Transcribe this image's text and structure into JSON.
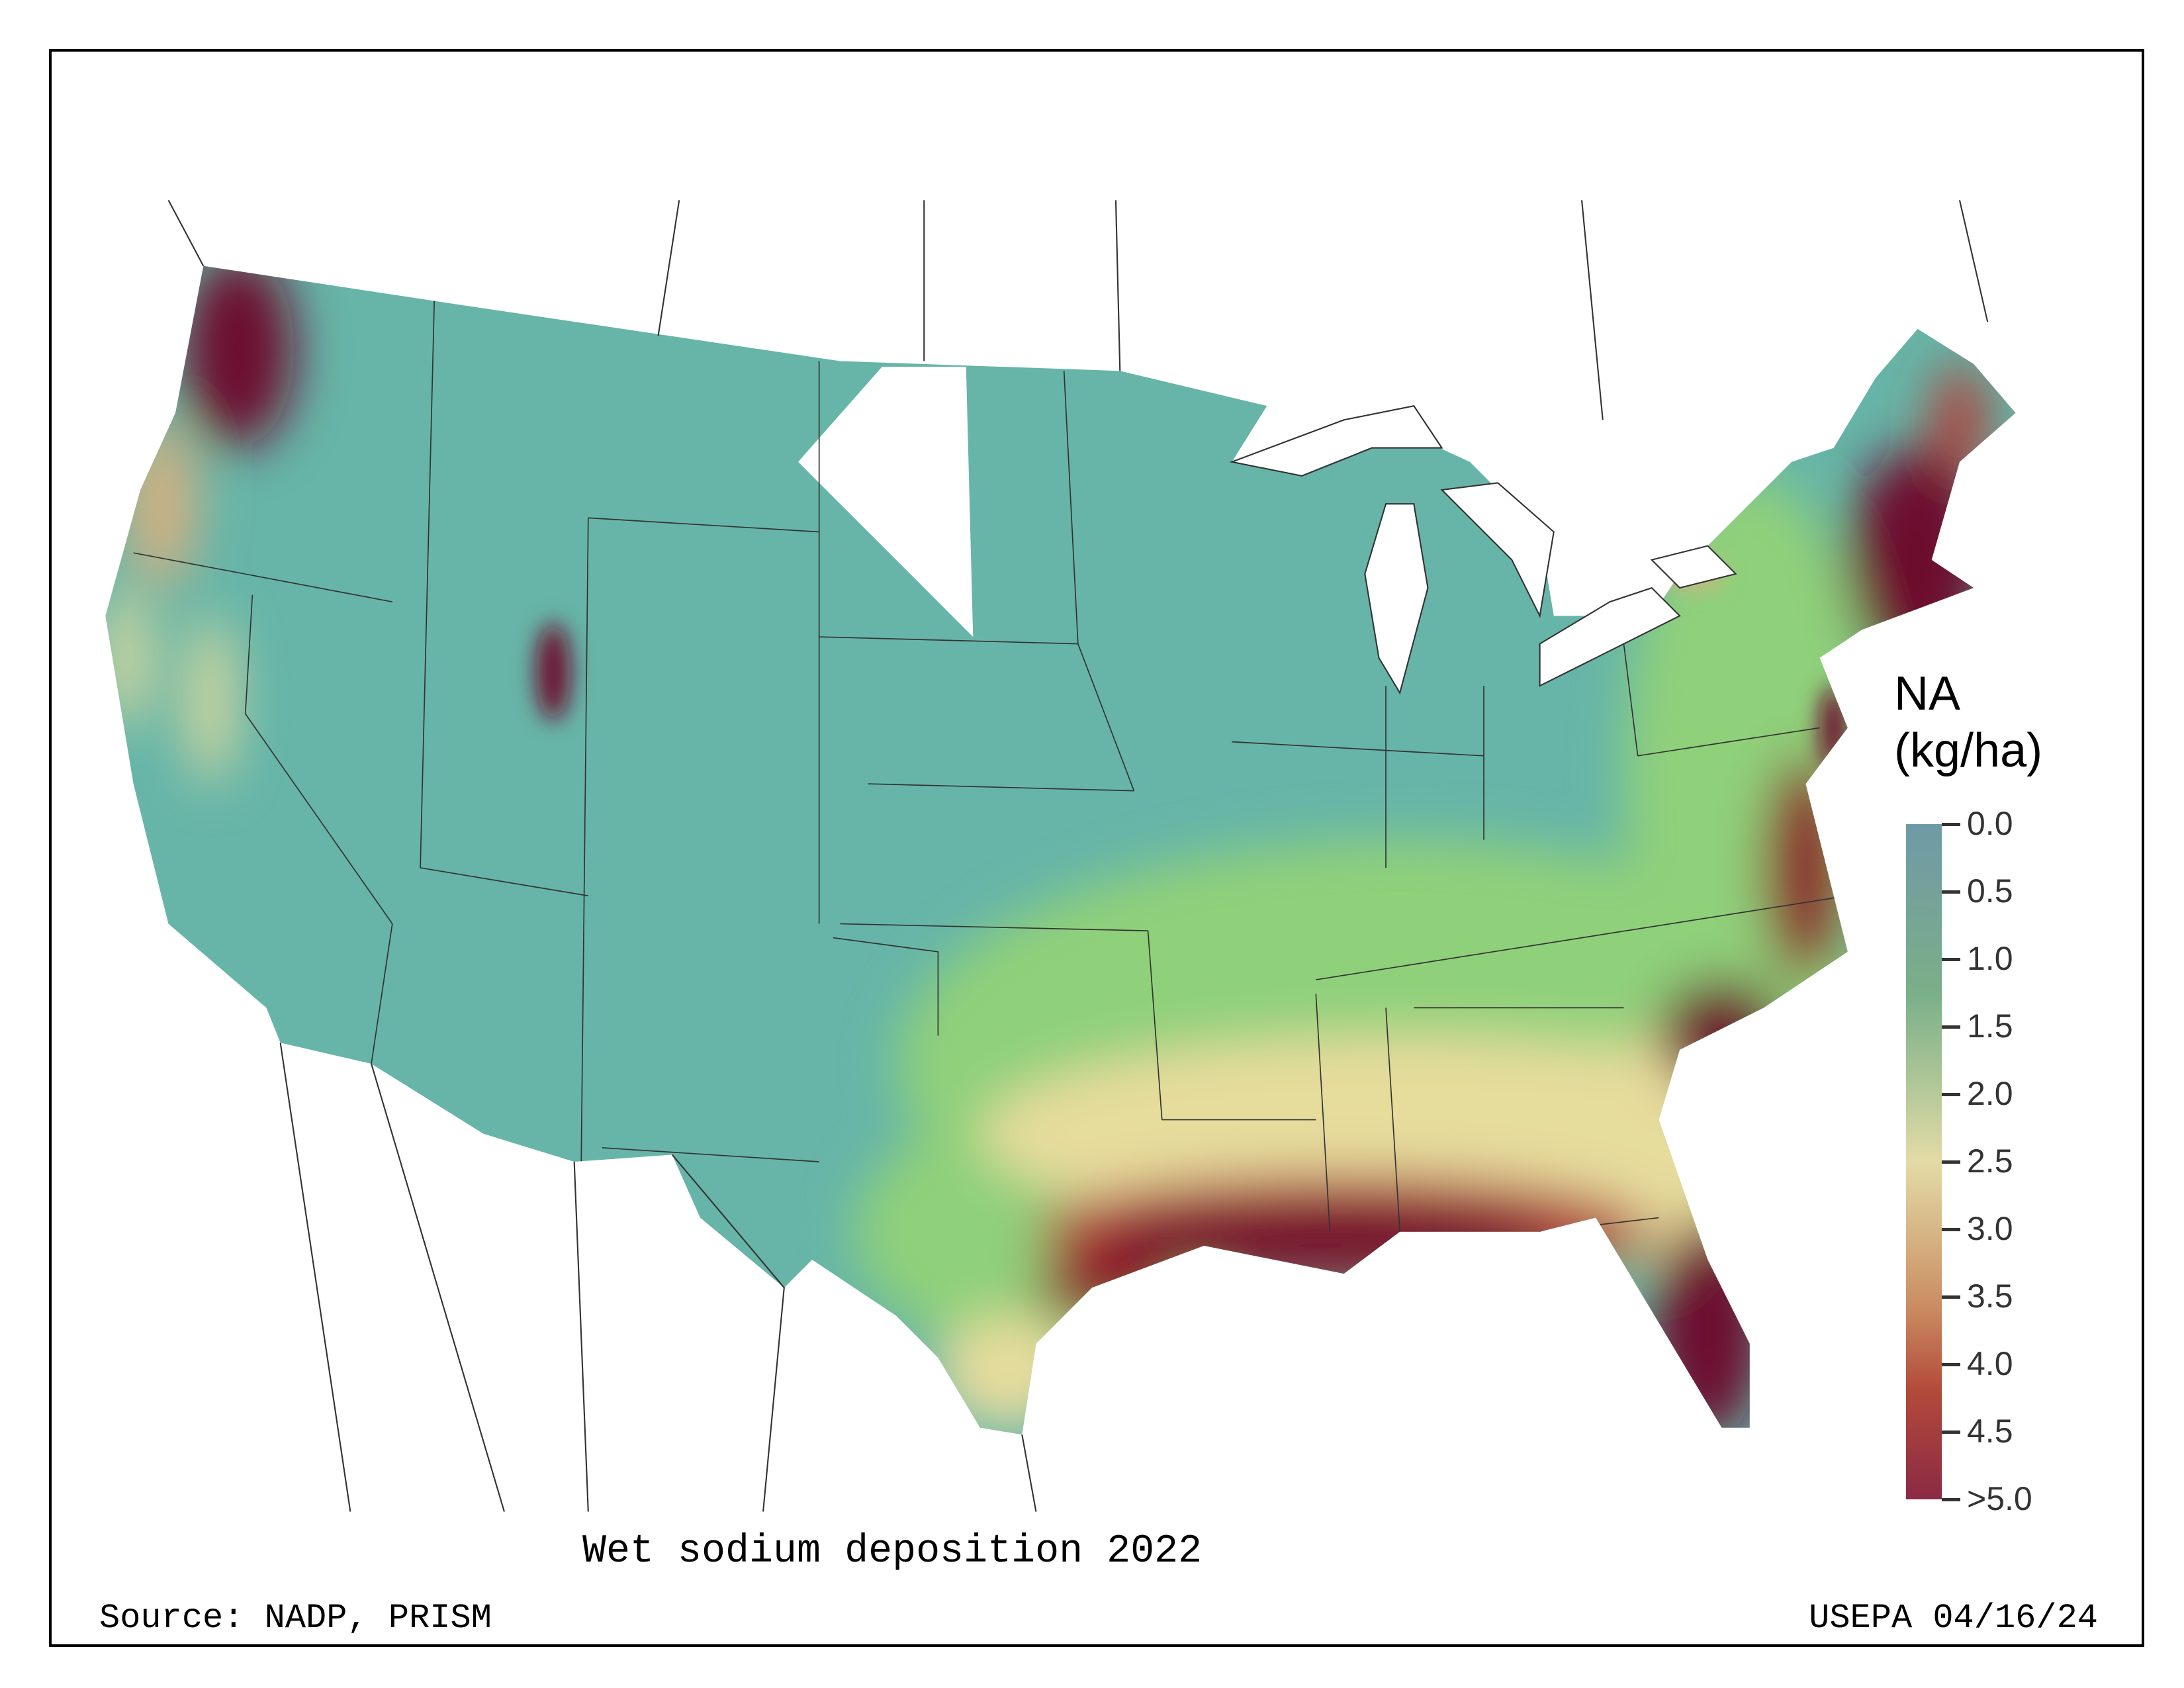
{
  "title": "Wet sodium deposition 2022",
  "source": "Source: NADP, PRISM",
  "credit": "USEPA 04/16/24",
  "legend": {
    "title_line1": "NA",
    "title_line2": "(kg/ha)",
    "ticks": [
      "0.0",
      "0.5",
      "1.0",
      "1.5",
      "2.0",
      "2.5",
      "3.0",
      "3.5",
      "4.0",
      "4.5",
      ">5.0"
    ],
    "colors": [
      "#6e9aa6",
      "#7aaf88",
      "#e3dba6",
      "#c98a60",
      "#8b2a45"
    ]
  },
  "colors": {
    "low": "#66b5a8",
    "mid": "#8fd07a",
    "high": "#e6dc9c",
    "max": "#6d0f2e"
  }
}
